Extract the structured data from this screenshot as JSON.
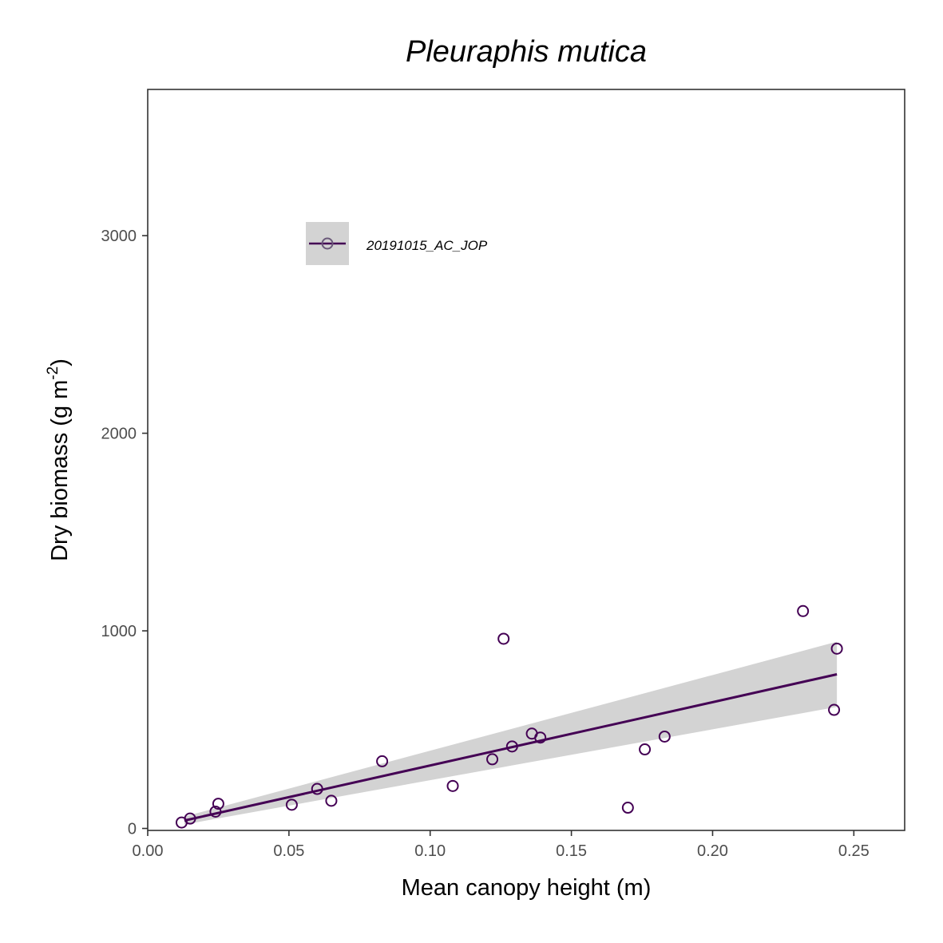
{
  "chart_data": {
    "type": "scatter",
    "title": "Pleuraphis mutica",
    "xlabel": "Mean canopy height (m)",
    "ylabel": "Dry biomass (g m",
    "ylabel_superscript": "-2",
    "ylabel_suffix": ")",
    "xlim": [
      0.0,
      0.268
    ],
    "ylim": [
      -10,
      3740
    ],
    "x_ticks": [
      0.0,
      0.05,
      0.1,
      0.15,
      0.2,
      0.25
    ],
    "x_tick_labels": [
      "0.00",
      "0.05",
      "0.10",
      "0.15",
      "0.20",
      "0.25"
    ],
    "y_ticks": [
      0,
      1000,
      2000,
      3000
    ],
    "y_tick_labels": [
      "0",
      "1000",
      "2000",
      "3000"
    ],
    "grid": false,
    "legend_position": "top-left",
    "colors": {
      "series": "#440154",
      "band": "#d3d3d3",
      "axis": "#333333"
    },
    "series": [
      {
        "name": "20191015_AC_JOP",
        "points": [
          {
            "x": 0.012,
            "y": 30
          },
          {
            "x": 0.015,
            "y": 50
          },
          {
            "x": 0.024,
            "y": 85
          },
          {
            "x": 0.025,
            "y": 125
          },
          {
            "x": 0.051,
            "y": 120
          },
          {
            "x": 0.06,
            "y": 200
          },
          {
            "x": 0.065,
            "y": 140
          },
          {
            "x": 0.083,
            "y": 340
          },
          {
            "x": 0.108,
            "y": 215
          },
          {
            "x": 0.122,
            "y": 350
          },
          {
            "x": 0.126,
            "y": 960
          },
          {
            "x": 0.129,
            "y": 415
          },
          {
            "x": 0.136,
            "y": 480
          },
          {
            "x": 0.139,
            "y": 460
          },
          {
            "x": 0.17,
            "y": 105
          },
          {
            "x": 0.176,
            "y": 400
          },
          {
            "x": 0.183,
            "y": 465
          },
          {
            "x": 0.232,
            "y": 1100
          },
          {
            "x": 0.243,
            "y": 600
          },
          {
            "x": 0.244,
            "y": 910
          }
        ],
        "fit": {
          "x": [
            0.013,
            0.244
          ],
          "y": [
            40,
            780
          ],
          "ci_lower": [
            20,
            615
          ],
          "ci_upper": [
            60,
            945
          ]
        }
      }
    ]
  }
}
